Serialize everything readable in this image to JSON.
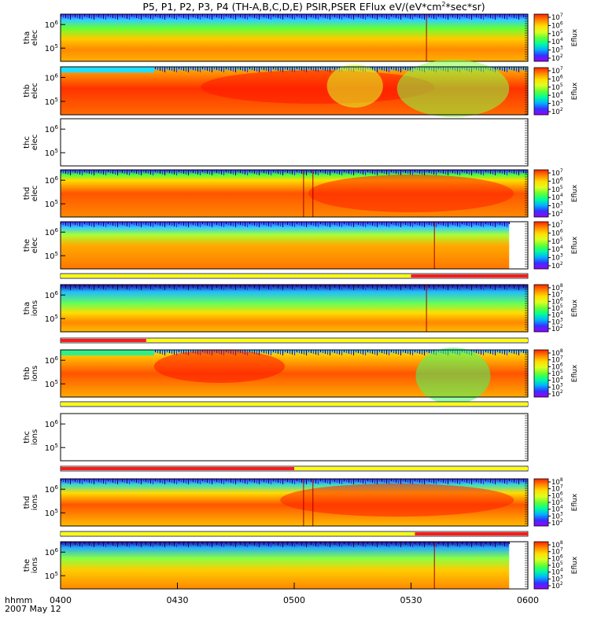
{
  "figure": {
    "title_main": "P5, P1, P2, P3, P4 (TH-A,B,C,D,E) PSIR,PSER EFlux eV/(eV*cm",
    "title_sup": "2",
    "title_end": "*sec*sr)",
    "time_axis_label": "hhmm",
    "date_label": "2007 May 12",
    "colorbar_label": "Eflux"
  },
  "chart_data": {
    "type": "heatmap",
    "x_range": [
      "04:00",
      "06:00"
    ],
    "x_ticks": [
      "0400",
      "0430",
      "0500",
      "0530",
      "0600"
    ],
    "colormap": [
      "#9900ff",
      "#3333ff",
      "#00b4ff",
      "#00ff99",
      "#66ff33",
      "#ddff22",
      "#ffdd00",
      "#ff8800",
      "#ff2200"
    ],
    "panels": [
      {
        "id": "tha_elec",
        "ylabel": [
          "tha",
          "elec"
        ],
        "ytick_labels": [
          "10^6",
          "10^5"
        ],
        "has_data": true,
        "colorbar_ticks": [
          "10^7",
          "10^6",
          "10^5",
          "10^4",
          "10^3",
          "10^2"
        ],
        "status_bar": null
      },
      {
        "id": "thb_elec",
        "ylabel": [
          "thb",
          "elec"
        ],
        "ytick_labels": [
          "10^6",
          "10^5"
        ],
        "has_data": true,
        "colorbar_ticks": [
          "10^7",
          "10^6",
          "10^5",
          "10^4",
          "10^3",
          "10^2"
        ],
        "status_bar": null
      },
      {
        "id": "thc_elec",
        "ylabel": [
          "thc",
          "elec"
        ],
        "ytick_labels": [
          "10^6",
          "10^5"
        ],
        "has_data": false,
        "colorbar_ticks": [],
        "status_bar": null
      },
      {
        "id": "thd_elec",
        "ylabel": [
          "thd",
          "elec"
        ],
        "ytick_labels": [
          "10^6",
          "10^5"
        ],
        "has_data": true,
        "colorbar_ticks": [
          "10^7",
          "10^6",
          "10^5",
          "10^4",
          "10^3",
          "10^2"
        ],
        "status_bar": null
      },
      {
        "id": "the_elec",
        "ylabel": [
          "the",
          "elec"
        ],
        "ytick_labels": [
          "10^6",
          "10^5"
        ],
        "has_data": true,
        "colorbar_ticks": [
          "10^7",
          "10^6",
          "10^5",
          "10^4",
          "10^3",
          "10^2"
        ],
        "status_bar": [
          {
            "from": "04:00",
            "to": "05:30",
            "color": "yellow"
          },
          {
            "from": "05:30",
            "to": "06:00",
            "color": "red"
          }
        ]
      },
      {
        "id": "tha_ions",
        "ylabel": [
          "tha",
          "ions"
        ],
        "ytick_labels": [
          "10^6",
          "10^5"
        ],
        "has_data": true,
        "colorbar_ticks": [
          "10^8",
          "10^7",
          "10^6",
          "10^5",
          "10^4",
          "10^3",
          "10^2"
        ],
        "status_bar": [
          {
            "from": "04:00",
            "to": "04:22",
            "color": "red"
          },
          {
            "from": "04:22",
            "to": "06:00",
            "color": "yellow"
          }
        ]
      },
      {
        "id": "thb_ions",
        "ylabel": [
          "thb",
          "ions"
        ],
        "ytick_labels": [
          "10^6",
          "10^5"
        ],
        "has_data": true,
        "colorbar_ticks": [
          "10^8",
          "10^7",
          "10^6",
          "10^5",
          "10^4",
          "10^3",
          "10^2"
        ],
        "status_bar": [
          {
            "from": "04:00",
            "to": "06:00",
            "color": "yellow"
          }
        ]
      },
      {
        "id": "thc_ions",
        "ylabel": [
          "thc",
          "ions"
        ],
        "ytick_labels": [
          "10^6",
          "10^5"
        ],
        "has_data": false,
        "colorbar_ticks": [],
        "status_bar": [
          {
            "from": "04:00",
            "to": "05:00",
            "color": "red"
          },
          {
            "from": "05:00",
            "to": "06:00",
            "color": "yellow"
          }
        ]
      },
      {
        "id": "thd_ions",
        "ylabel": [
          "thd",
          "ions"
        ],
        "ytick_labels": [
          "10^6",
          "10^5"
        ],
        "has_data": true,
        "colorbar_ticks": [
          "10^8",
          "10^7",
          "10^6",
          "10^5",
          "10^4",
          "10^3",
          "10^2"
        ],
        "status_bar": [
          {
            "from": "04:00",
            "to": "05:31",
            "color": "yellow"
          },
          {
            "from": "05:31",
            "to": "06:00",
            "color": "red"
          }
        ]
      },
      {
        "id": "the_ions",
        "ylabel": [
          "the",
          "ions"
        ],
        "ytick_labels": [
          "10^6",
          "10^5"
        ],
        "has_data": true,
        "colorbar_ticks": [
          "10^8",
          "10^7",
          "10^6",
          "10^5",
          "10^4",
          "10^3",
          "10^2"
        ],
        "status_bar": null
      }
    ]
  }
}
